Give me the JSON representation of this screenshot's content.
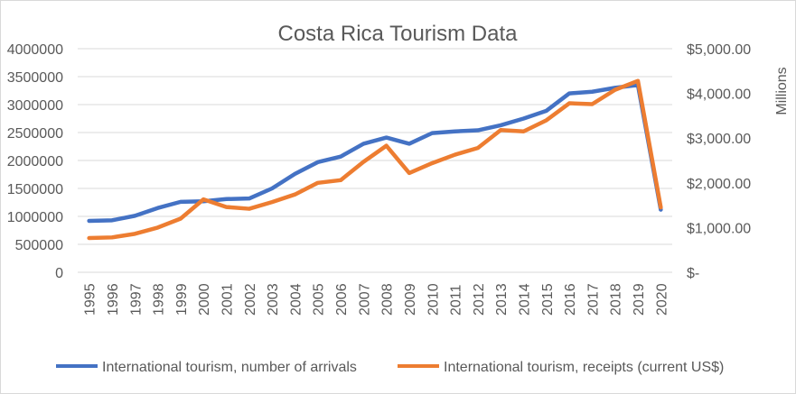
{
  "chart_data": {
    "type": "line",
    "title": "Costa Rica Tourism Data",
    "xlabel": "",
    "ylabel": "",
    "y2label": "Millions",
    "x": [
      "1995",
      "1996",
      "1997",
      "1998",
      "1999",
      "2000",
      "2001",
      "2002",
      "2003",
      "2004",
      "2005",
      "2006",
      "2007",
      "2008",
      "2009",
      "2010",
      "2011",
      "2012",
      "2013",
      "2014",
      "2015",
      "2016",
      "2017",
      "2018",
      "2019",
      "2020"
    ],
    "ylim": [
      0,
      4000000
    ],
    "yticks": [
      "0",
      "500000",
      "1000000",
      "1500000",
      "2000000",
      "2500000",
      "3000000",
      "3500000",
      "4000000"
    ],
    "y2lim": [
      0,
      5000
    ],
    "y2ticks": [
      "$-",
      "$1,000.00",
      "$2,000.00",
      "$3,000.00",
      "$4,000.00",
      "$5,000.00"
    ],
    "grid": true,
    "legend_position": "bottom",
    "series": [
      {
        "name": "International tourism, number of arrivals",
        "axis": "left",
        "color": "#4472c4",
        "values": [
          920000,
          930000,
          1010000,
          1150000,
          1260000,
          1270000,
          1310000,
          1320000,
          1500000,
          1760000,
          1970000,
          2070000,
          2300000,
          2410000,
          2300000,
          2490000,
          2520000,
          2540000,
          2630000,
          2750000,
          2890000,
          3200000,
          3230000,
          3300000,
          3350000,
          1120000
        ]
      },
      {
        "name": "International tourism, receipts (current US$)",
        "axis": "right",
        "color": "#ed7d31",
        "values": [
          766,
          780,
          860,
          1000,
          1200,
          1630,
          1460,
          1420,
          1570,
          1740,
          2000,
          2060,
          2470,
          2830,
          2220,
          2440,
          2630,
          2780,
          3180,
          3150,
          3400,
          3780,
          3760,
          4080,
          4280,
          1450
        ]
      }
    ]
  }
}
